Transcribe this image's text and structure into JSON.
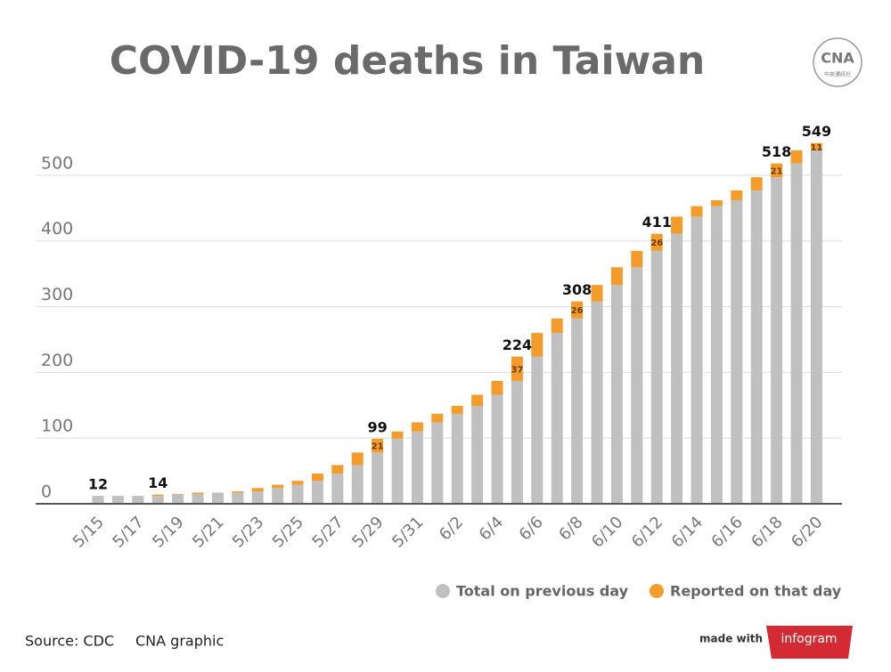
{
  "chart_data": {
    "type": "stacked_bar",
    "title": "COVID-19 deaths in Taiwan",
    "categories": [
      "5/15",
      null,
      "5/17",
      null,
      "5/19",
      null,
      "5/21",
      null,
      "5/23",
      null,
      "5/25",
      null,
      "5/27",
      null,
      "5/29",
      null,
      "5/31",
      null,
      "6/2",
      null,
      "6/4",
      null,
      "6/6",
      null,
      "6/8",
      null,
      "6/10",
      null,
      "6/12",
      null,
      "6/14",
      null,
      "6/16",
      null,
      "6/18",
      null,
      "6/20"
    ],
    "series": [
      {
        "name": "Total on previous day",
        "color": "#c0c0c0",
        "values": [
          12,
          12,
          12,
          12,
          14,
          15,
          17,
          17,
          19,
          24,
          29,
          35,
          46,
          59,
          78,
          99,
          110,
          124,
          137,
          149,
          166,
          187,
          224,
          260,
          282,
          308,
          333,
          360,
          385,
          411,
          437,
          453,
          462,
          477,
          497,
          518,
          538
        ]
      },
      {
        "name": "Reported on that day",
        "color": "#f39c2b",
        "values": [
          0,
          0,
          0,
          2,
          1,
          2,
          0,
          2,
          5,
          5,
          6,
          11,
          13,
          19,
          21,
          11,
          14,
          13,
          12,
          17,
          21,
          37,
          36,
          22,
          26,
          25,
          27,
          25,
          26,
          26,
          16,
          9,
          15,
          20,
          21,
          20,
          11
        ],
        "value_labels": [
          null,
          null,
          null,
          null,
          null,
          null,
          null,
          null,
          null,
          null,
          null,
          null,
          null,
          null,
          "21",
          null,
          null,
          null,
          null,
          null,
          null,
          "37",
          null,
          null,
          "26",
          null,
          null,
          null,
          "26",
          null,
          null,
          null,
          null,
          null,
          "21",
          null,
          "11"
        ]
      }
    ],
    "total_labels": [
      "12",
      null,
      null,
      "14",
      null,
      null,
      null,
      null,
      null,
      null,
      null,
      null,
      null,
      null,
      "99",
      null,
      null,
      null,
      null,
      null,
      null,
      "224",
      null,
      null,
      "308",
      null,
      null,
      null,
      "411",
      null,
      null,
      null,
      null,
      null,
      "518",
      null,
      "549"
    ],
    "ylim": [
      0,
      550
    ],
    "yticks": [
      0,
      100,
      200,
      300,
      400,
      500
    ],
    "grid": true,
    "source": "Source: CDC",
    "credit": "CNA graphic",
    "logo": "CNA",
    "logo_sub": "中央通訊社",
    "made_with": "made with",
    "brand": "infogram"
  }
}
